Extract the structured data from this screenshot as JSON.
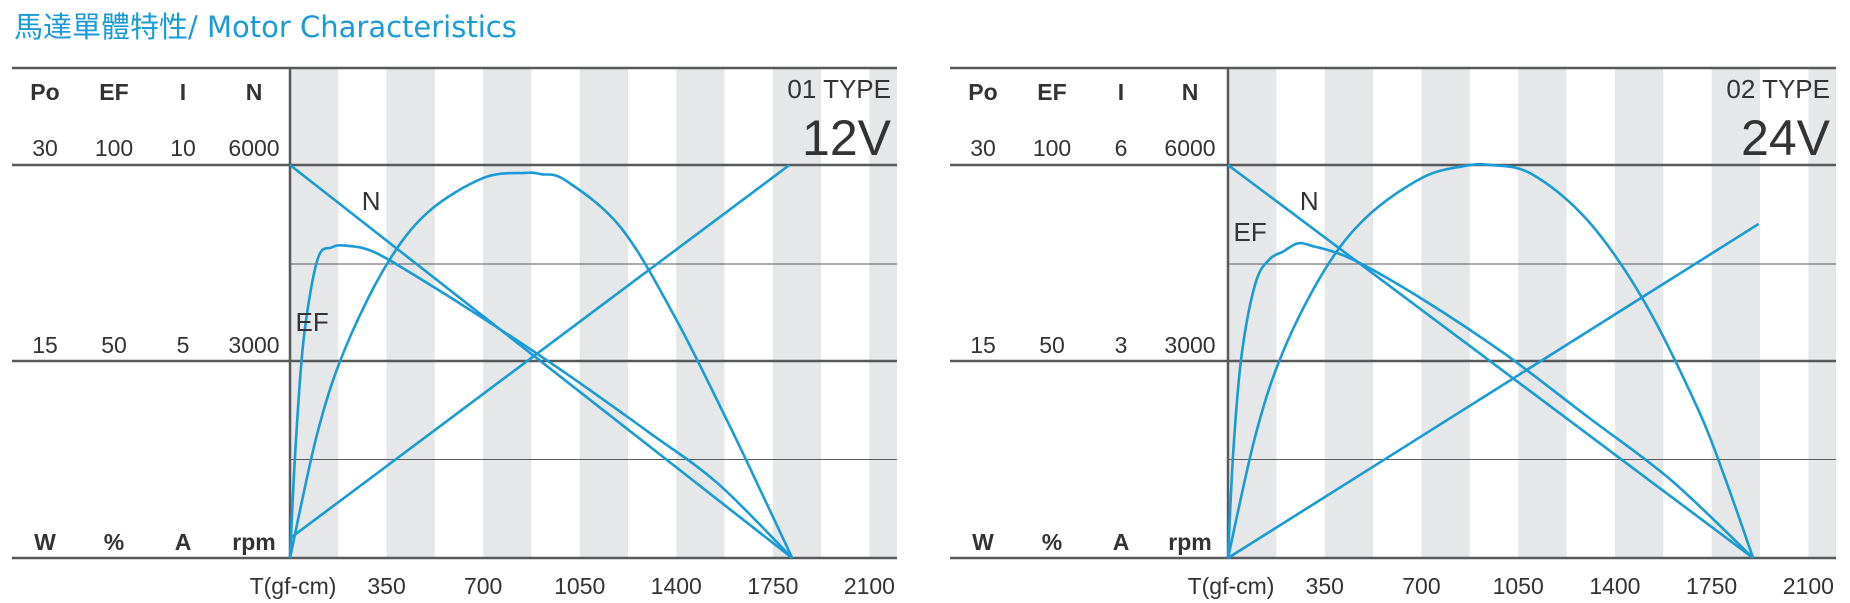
{
  "title": "馬達單體特性/ Motor Characteristics",
  "colors": {
    "curve": "#1a9ad7",
    "title": "#1a9ad7",
    "stripe": "#e6e7e8",
    "axis": "#58595b"
  },
  "chart_data": [
    {
      "type": "line",
      "type_label": "01 TYPE",
      "voltage_label": "12V",
      "xlabel": "T(gf-cm)",
      "x_ticks": [
        350,
        700,
        1050,
        1400,
        1750,
        2100
      ],
      "xlim": [
        0,
        2200
      ],
      "axes": [
        {
          "name": "Po",
          "unit": "W",
          "max": 30,
          "mid": 15
        },
        {
          "name": "EF",
          "unit": "%",
          "max": 100,
          "mid": 50
        },
        {
          "name": "I",
          "unit": "A",
          "max": 10,
          "mid": 5
        },
        {
          "name": "N",
          "unit": "rpm",
          "max": 6000,
          "mid": 3000
        }
      ],
      "series": [
        {
          "name": "N",
          "axis": "N",
          "x": [
            0,
            1820
          ],
          "values": [
            6000,
            0
          ],
          "label_at": [
            260,
            5450
          ]
        },
        {
          "name": "I",
          "axis": "I",
          "x": [
            0,
            1810
          ],
          "values": [
            0.5,
            10
          ],
          "label_at": [
            1470,
            8000
          ]
        },
        {
          "name": "Po",
          "axis": "Po",
          "x": [
            0,
            100,
            200,
            350,
            500,
            700,
            850,
            910,
            1000,
            1200,
            1400,
            1600,
            1700,
            1820
          ],
          "values": [
            0,
            9.6,
            16.0,
            22.4,
            26.4,
            29.0,
            29.4,
            29.3,
            28.8,
            25.2,
            18.2,
            9.8,
            5.4,
            0
          ],
          "label_at": [
            900,
            26200
          ]
        },
        {
          "name": "EF",
          "axis": "EF",
          "x": [
            0,
            20,
            50,
            100,
            150,
            200,
            300,
            450,
            700,
            1000,
            1300,
            1550,
            1820
          ],
          "values": [
            0,
            28,
            56,
            76,
            79,
            79.5,
            78,
            72,
            61,
            47,
            32,
            19,
            0
          ],
          "label_at": [
            20,
            60
          ]
        }
      ]
    },
    {
      "type": "line",
      "type_label": "02 TYPE",
      "voltage_label": "24V",
      "xlabel": "T(gf-cm)",
      "x_ticks": [
        350,
        700,
        1050,
        1400,
        1750,
        2100
      ],
      "xlim": [
        0,
        2200
      ],
      "axes": [
        {
          "name": "Po",
          "unit": "W",
          "max": 30,
          "mid": 15
        },
        {
          "name": "EF",
          "unit": "%",
          "max": 100,
          "mid": 50
        },
        {
          "name": "I",
          "unit": "A",
          "max": 6,
          "mid": 3
        },
        {
          "name": "N",
          "unit": "rpm",
          "max": 6000,
          "mid": 3000
        }
      ],
      "series": [
        {
          "name": "N",
          "axis": "N",
          "x": [
            0,
            1900
          ],
          "values": [
            6000,
            0
          ],
          "label_at": [
            260,
            5450
          ]
        },
        {
          "name": "I",
          "axis": "I",
          "x": [
            0,
            1920
          ],
          "values": [
            0,
            5.1
          ],
          "label_at": [
            1800,
            5500
          ]
        },
        {
          "name": "Po",
          "axis": "Po",
          "x": [
            0,
            100,
            200,
            350,
            500,
            700,
            850,
            950,
            1100,
            1300,
            1500,
            1700,
            1800,
            1900
          ],
          "values": [
            0,
            9.4,
            15.8,
            22.0,
            26.0,
            29.0,
            29.9,
            30.0,
            29.3,
            25.8,
            19.8,
            11.4,
            6.0,
            0
          ],
          "label_at": [
            950,
            31600
          ]
        },
        {
          "name": "EF",
          "axis": "EF",
          "x": [
            0,
            20,
            50,
            100,
            150,
            200,
            250,
            300,
            450,
            700,
            1000,
            1300,
            1600,
            1900
          ],
          "values": [
            0,
            28,
            52,
            70,
            76,
            78,
            80,
            79.5,
            76,
            66,
            52,
            36,
            20,
            0
          ],
          "label_at": [
            20,
            83
          ]
        }
      ]
    }
  ]
}
